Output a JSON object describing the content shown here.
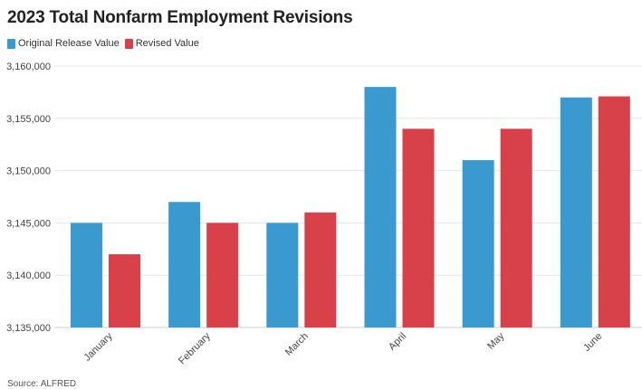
{
  "chart_data": {
    "type": "bar",
    "title": "2023 Total Nonfarm Employment Revisions",
    "categories": [
      "January",
      "February",
      "March",
      "April",
      "May",
      "June"
    ],
    "series": [
      {
        "name": "Original Release Value",
        "color": "#3a9ad0",
        "values": [
          3145000,
          3147000,
          3145000,
          3158000,
          3151000,
          3157000
        ]
      },
      {
        "name": "Revised Value",
        "color": "#d8404a",
        "values": [
          3142000,
          3145000,
          3146000,
          3154000,
          3154000,
          3157100
        ]
      }
    ],
    "xlabel": "",
    "ylabel": "",
    "ylim": [
      3135000,
      3160000
    ],
    "yticks": [
      3135000,
      3140000,
      3145000,
      3150000,
      3155000,
      3160000
    ],
    "ytick_labels": [
      "3,135,000",
      "3,140,000",
      "3,145,000",
      "3,150,000",
      "3,155,000",
      "3,160,000"
    ],
    "grid": "horizontal",
    "legend_position": "top-left",
    "source": "Source: ALFRED"
  }
}
